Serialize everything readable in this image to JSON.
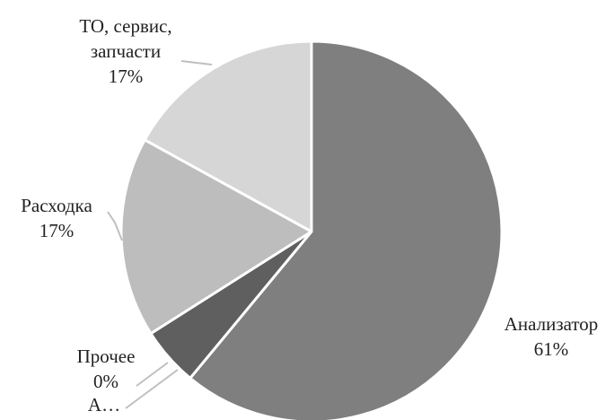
{
  "chart_data": {
    "type": "pie",
    "title": "",
    "slices": [
      {
        "name": "Анализатор",
        "value": 61,
        "label_name": "Анализатор",
        "label_pct": "61%",
        "color": "#7f7f7f"
      },
      {
        "name": "А…",
        "value": 5,
        "label_name": "А…",
        "label_pct": "",
        "color": "#5f5f5f"
      },
      {
        "name": "Прочее",
        "value": 0,
        "label_name": "Прочее",
        "label_pct": "0%",
        "color": "#e8e8e8"
      },
      {
        "name": "Расходка",
        "value": 17,
        "label_name": "Расходка",
        "label_pct": "17%",
        "color": "#bdbdbd"
      },
      {
        "name": "ТО, сервис, запчасти",
        "value": 17,
        "label_lines": [
          "ТО, сервис,",
          "запчасти"
        ],
        "label_pct": "17%",
        "color": "#d6d6d6"
      }
    ],
    "start_angle": "12 o'clock",
    "direction": "clockwise",
    "legend": "none",
    "slice_border_color": "#ffffff",
    "leader_line_color": "#bfbfbf"
  }
}
